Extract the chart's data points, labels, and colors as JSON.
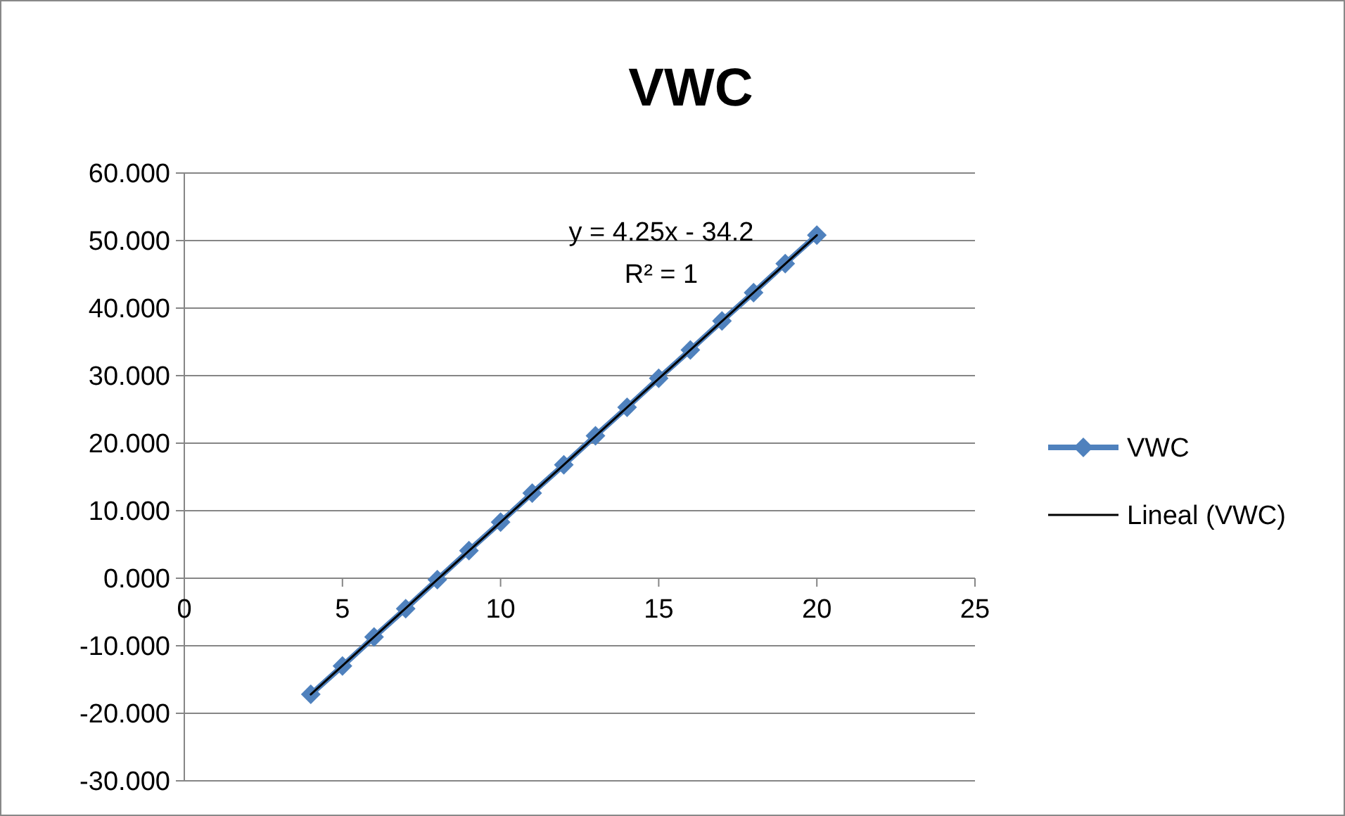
{
  "chart_data": {
    "type": "line",
    "title": "VWC",
    "xlim": [
      0,
      25
    ],
    "xticks": [
      0,
      5,
      10,
      15,
      20,
      25
    ],
    "ylim": [
      -30,
      60
    ],
    "yticks": [
      {
        "value": -30,
        "label": "-30.000"
      },
      {
        "value": -20,
        "label": "-20.000"
      },
      {
        "value": -10,
        "label": "-10.000"
      },
      {
        "value": 0,
        "label": "0.000"
      },
      {
        "value": 10,
        "label": "10.000"
      },
      {
        "value": 20,
        "label": "20.000"
      },
      {
        "value": 30,
        "label": "30.000"
      },
      {
        "value": 40,
        "label": "40.000"
      },
      {
        "value": 50,
        "label": "50.000"
      },
      {
        "value": 60,
        "label": "60.000"
      }
    ],
    "grid": "y",
    "legend": "right",
    "series": [
      {
        "name": "VWC",
        "color": "#4f81bd",
        "marker": "diamond",
        "x": [
          4,
          5,
          6,
          7,
          8,
          9,
          10,
          11,
          12,
          13,
          14,
          15,
          16,
          17,
          18,
          19,
          20
        ],
        "values": [
          -17.2,
          -13,
          -8.7,
          -4.5,
          -0.2,
          4.1,
          8.3,
          12.6,
          16.8,
          21.1,
          25.3,
          29.6,
          33.8,
          38.1,
          42.3,
          46.6,
          50.8
        ]
      },
      {
        "name": "Lineal (VWC)",
        "color": "#000000",
        "marker": "none",
        "x": [
          4,
          20
        ],
        "values": [
          -17.2,
          50.8
        ]
      }
    ],
    "annotations": [
      "y = 4.25x - 34.2",
      "R² = 1"
    ]
  }
}
